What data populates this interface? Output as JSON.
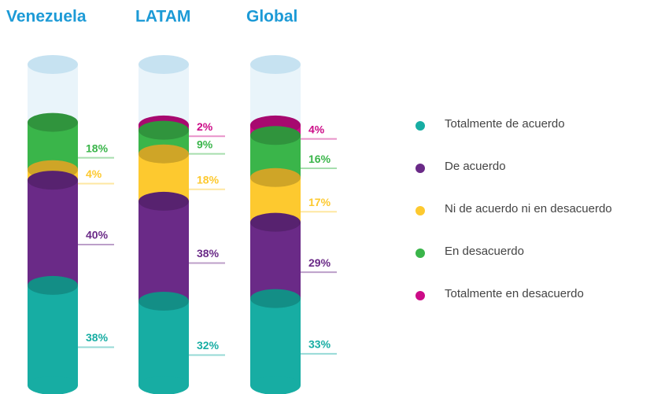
{
  "chart_data": {
    "type": "stacked-cylinder",
    "categories": [
      "Venezuela",
      "LATAM",
      "Global"
    ],
    "series": [
      {
        "name": "Totalmente de acuerdo",
        "color": "#17ada3",
        "values": [
          38,
          32,
          33
        ],
        "value_labels": [
          "38%",
          "32%",
          "33%"
        ]
      },
      {
        "name": "De acuerdo",
        "color": "#6a2a87",
        "values": [
          40,
          38,
          29
        ],
        "value_labels": [
          "40%",
          "38%",
          "29%"
        ]
      },
      {
        "name": "Ni de acuerdo ni en desacuerdo",
        "color": "#fdc92f",
        "values": [
          4,
          18,
          17
        ],
        "value_labels": [
          "4%",
          "18%",
          "17%"
        ]
      },
      {
        "name": "En desacuerdo",
        "color": "#3ab54a",
        "values": [
          18,
          9,
          16
        ],
        "value_labels": [
          "18%",
          "9%",
          "16%"
        ]
      },
      {
        "name": "Totalmente en desacuerdo",
        "color": "#cc0b87",
        "values": [
          null,
          2,
          4
        ],
        "value_labels": [
          null,
          "2%",
          "4%"
        ]
      }
    ],
    "ylim": [
      0,
      122
    ],
    "legend": "right"
  }
}
